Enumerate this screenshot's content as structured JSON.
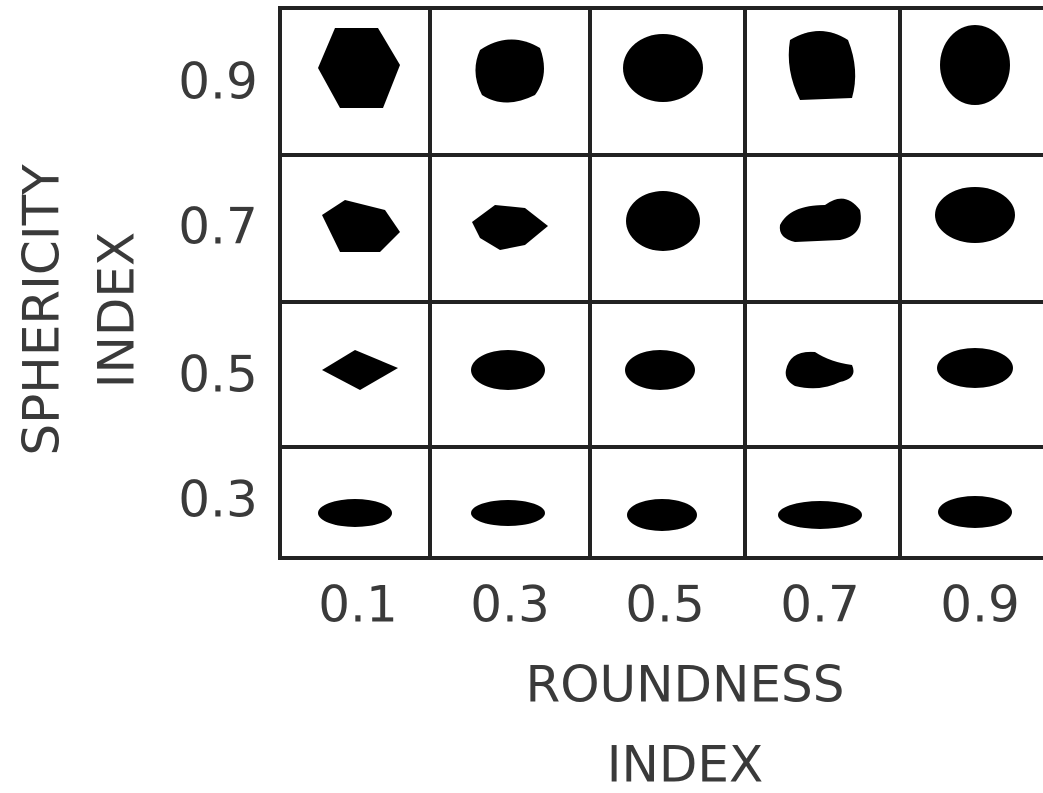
{
  "y_axis": {
    "title_lines": [
      "SPHERICITY",
      "INDEX"
    ],
    "labels": [
      "0.9",
      "0.7",
      "0.5",
      "0.3"
    ]
  },
  "x_axis": {
    "labels": [
      "0.1",
      "0.3",
      "0.5",
      "0.7",
      "0.9"
    ],
    "title_lines": [
      "ROUNDNESS",
      "INDEX"
    ]
  }
}
